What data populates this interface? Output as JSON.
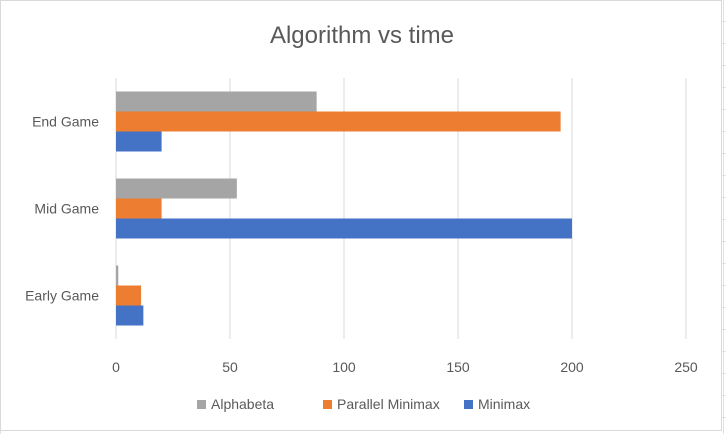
{
  "chart_data": {
    "type": "bar",
    "orientation": "horizontal",
    "title": "Algorithm vs time",
    "categories": [
      "Early Game",
      "Mid Game",
      "End Game"
    ],
    "series": [
      {
        "name": "Minimax",
        "color": "#4472c4",
        "values": [
          12,
          200,
          20
        ]
      },
      {
        "name": "Parallel Minimax",
        "color": "#ed7d31",
        "values": [
          11,
          20,
          195
        ]
      },
      {
        "name": "Alphabeta",
        "color": "#a5a5a5",
        "values": [
          1,
          53,
          88
        ]
      }
    ],
    "legend_order": [
      "Alphabeta",
      "Parallel Minimax",
      "Minimax"
    ],
    "xlim": [
      0,
      250
    ],
    "xticks": [
      0,
      50,
      100,
      150,
      200,
      250
    ],
    "grid": true,
    "legend_position": "bottom"
  }
}
